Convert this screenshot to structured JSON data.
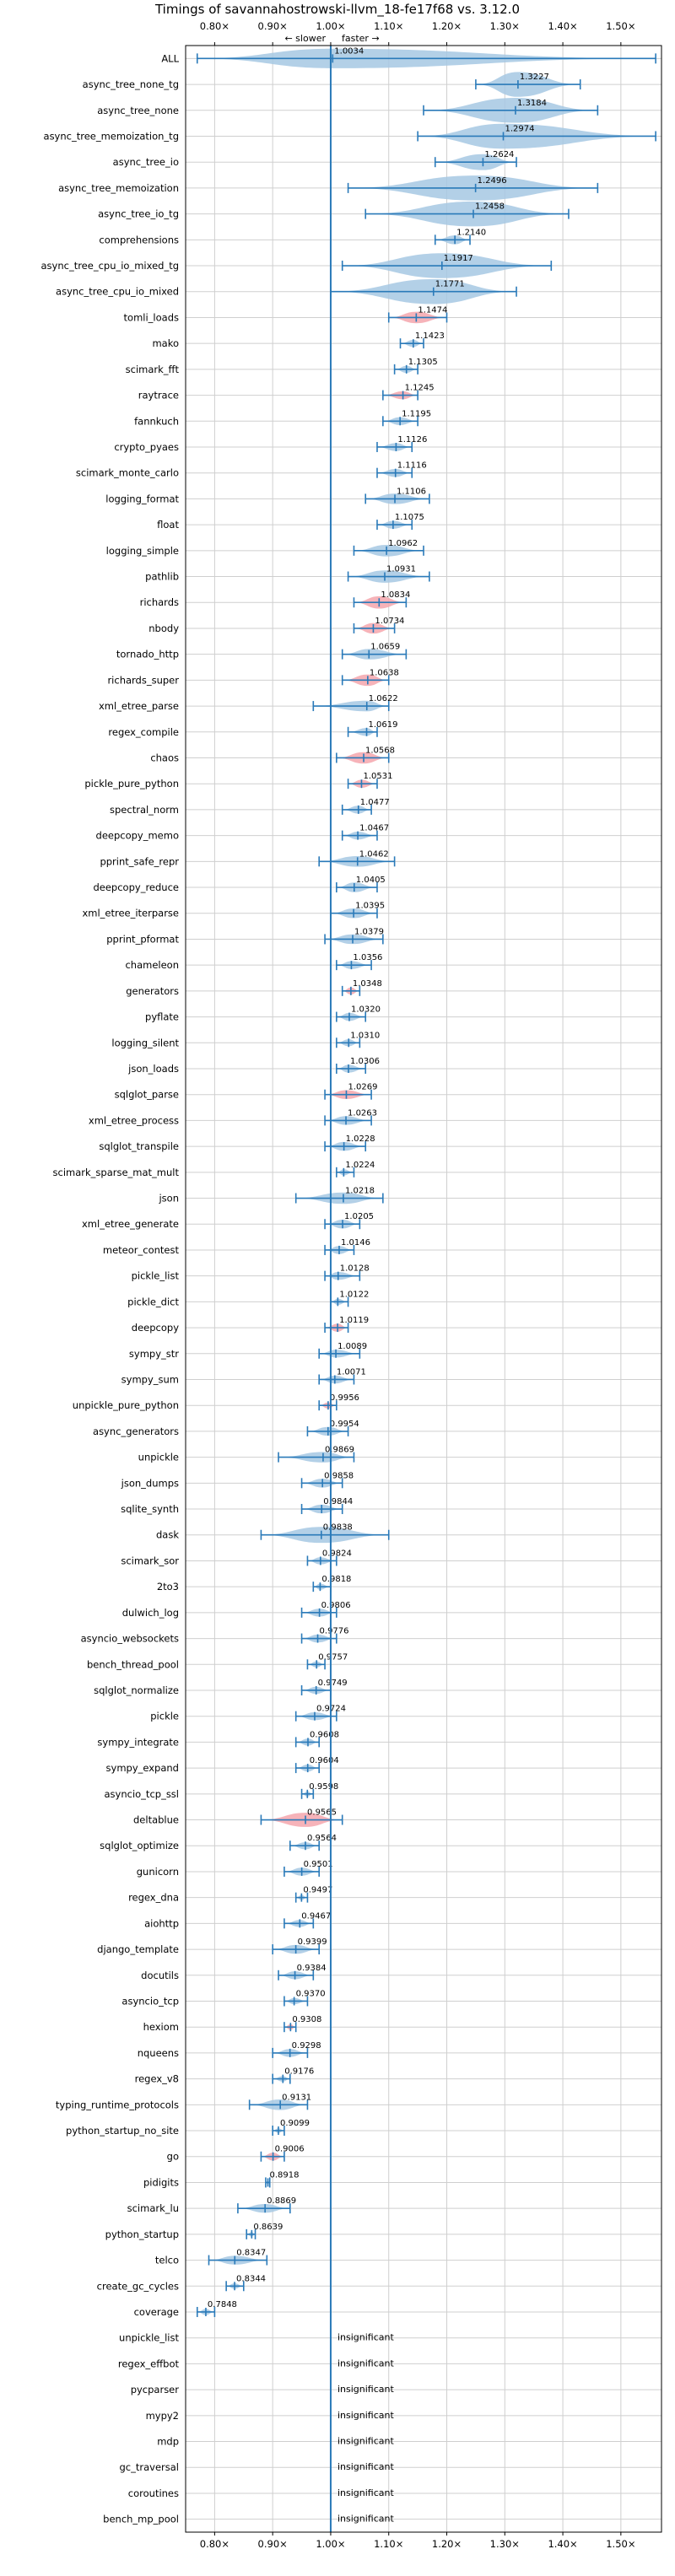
{
  "chart_data": {
    "type": "violin",
    "title": "Timings of savannahostrowski-llvm_18-fe17f68 vs. 3.12.0",
    "direction_labels": {
      "slower": "← slower",
      "faster": "faster →"
    },
    "xlim": [
      0.75,
      1.57
    ],
    "x_ticks": [
      0.8,
      0.9,
      1.0,
      1.1,
      1.2,
      1.3,
      1.4,
      1.5
    ],
    "x_tick_labels": [
      "0.80×",
      "0.90×",
      "1.00×",
      "1.10×",
      "1.20×",
      "1.30×",
      "1.40×",
      "1.50×"
    ],
    "grid": true,
    "reference_line": 1.0,
    "insignificant_label": "insignificant",
    "colors": {
      "normal": "#a6c8e3",
      "highlight": "#f4a6ad",
      "line": "#2a7ab9",
      "grid": "#cfcfcf"
    },
    "benchmarks": [
      {
        "name": "ALL",
        "value": 1.0034,
        "label": "1.0034",
        "min": 0.77,
        "max": 1.56,
        "width": 0.09,
        "highlight": false
      },
      {
        "name": "async_tree_none_tg",
        "value": 1.3227,
        "label": "1.3227",
        "min": 1.25,
        "max": 1.43,
        "width": 0.13,
        "highlight": false
      },
      {
        "name": "async_tree_none",
        "value": 1.3184,
        "label": "1.3184",
        "min": 1.16,
        "max": 1.46,
        "width": 0.15,
        "highlight": false
      },
      {
        "name": "async_tree_memoization_tg",
        "value": 1.2974,
        "label": "1.2974",
        "min": 1.15,
        "max": 1.56,
        "width": 0.21,
        "highlight": false
      },
      {
        "name": "async_tree_io",
        "value": 1.2624,
        "label": "1.2624",
        "min": 1.18,
        "max": 1.32,
        "width": 0.07,
        "highlight": false
      },
      {
        "name": "async_tree_memoization",
        "value": 1.2496,
        "label": "1.2496",
        "min": 1.03,
        "max": 1.46,
        "width": 0.21,
        "highlight": false
      },
      {
        "name": "async_tree_io_tg",
        "value": 1.2458,
        "label": "1.2458",
        "min": 1.06,
        "max": 1.41,
        "width": 0.18,
        "highlight": false
      },
      {
        "name": "comprehensions",
        "value": 1.214,
        "label": "1.2140",
        "min": 1.18,
        "max": 1.24,
        "width": 0.03,
        "highlight": false
      },
      {
        "name": "async_tree_cpu_io_mixed_tg",
        "value": 1.1917,
        "label": "1.1917",
        "min": 1.02,
        "max": 1.38,
        "width": 0.18,
        "highlight": false
      },
      {
        "name": "async_tree_cpu_io_mixed",
        "value": 1.1771,
        "label": "1.1771",
        "min": 1.0,
        "max": 1.32,
        "width": 0.16,
        "highlight": false
      },
      {
        "name": "tomli_loads",
        "value": 1.1474,
        "label": "1.1474",
        "min": 1.1,
        "max": 1.2,
        "width": 0.045,
        "highlight": true
      },
      {
        "name": "mako",
        "value": 1.1423,
        "label": "1.1423",
        "min": 1.12,
        "max": 1.16,
        "width": 0.02,
        "highlight": false
      },
      {
        "name": "scimark_fft",
        "value": 1.1305,
        "label": "1.1305",
        "min": 1.11,
        "max": 1.15,
        "width": 0.02,
        "highlight": false
      },
      {
        "name": "raytrace",
        "value": 1.1245,
        "label": "1.1245",
        "min": 1.09,
        "max": 1.15,
        "width": 0.025,
        "highlight": true
      },
      {
        "name": "fannkuch",
        "value": 1.1195,
        "label": "1.1195",
        "min": 1.09,
        "max": 1.15,
        "width": 0.025,
        "highlight": false
      },
      {
        "name": "crypto_pyaes",
        "value": 1.1126,
        "label": "1.1126",
        "min": 1.08,
        "max": 1.14,
        "width": 0.025,
        "highlight": false
      },
      {
        "name": "scimark_monte_carlo",
        "value": 1.1116,
        "label": "1.1116",
        "min": 1.08,
        "max": 1.14,
        "width": 0.025,
        "highlight": false
      },
      {
        "name": "logging_format",
        "value": 1.1106,
        "label": "1.1106",
        "min": 1.06,
        "max": 1.17,
        "width": 0.04,
        "highlight": false
      },
      {
        "name": "float",
        "value": 1.1075,
        "label": "1.1075",
        "min": 1.08,
        "max": 1.14,
        "width": 0.025,
        "highlight": false
      },
      {
        "name": "logging_simple",
        "value": 1.0962,
        "label": "1.0962",
        "min": 1.04,
        "max": 1.16,
        "width": 0.045,
        "highlight": false
      },
      {
        "name": "pathlib",
        "value": 1.0931,
        "label": "1.0931",
        "min": 1.03,
        "max": 1.17,
        "width": 0.05,
        "highlight": false
      },
      {
        "name": "richards",
        "value": 1.0834,
        "label": "1.0834",
        "min": 1.04,
        "max": 1.13,
        "width": 0.05,
        "highlight": true
      },
      {
        "name": "nbody",
        "value": 1.0734,
        "label": "1.0734",
        "min": 1.04,
        "max": 1.11,
        "width": 0.04,
        "highlight": true
      },
      {
        "name": "tornado_http",
        "value": 1.0659,
        "label": "1.0659",
        "min": 1.02,
        "max": 1.13,
        "width": 0.04,
        "highlight": false
      },
      {
        "name": "richards_super",
        "value": 1.0638,
        "label": "1.0638",
        "min": 1.02,
        "max": 1.1,
        "width": 0.045,
        "highlight": true
      },
      {
        "name": "xml_etree_parse",
        "value": 1.0622,
        "label": "1.0622",
        "min": 0.97,
        "max": 1.1,
        "width": 0.04,
        "highlight": false
      },
      {
        "name": "regex_compile",
        "value": 1.0619,
        "label": "1.0619",
        "min": 1.03,
        "max": 1.08,
        "width": 0.025,
        "highlight": false
      },
      {
        "name": "chaos",
        "value": 1.0568,
        "label": "1.0568",
        "min": 1.01,
        "max": 1.1,
        "width": 0.045,
        "highlight": true
      },
      {
        "name": "pickle_pure_python",
        "value": 1.0531,
        "label": "1.0531",
        "min": 1.03,
        "max": 1.08,
        "width": 0.025,
        "highlight": true
      },
      {
        "name": "spectral_norm",
        "value": 1.0477,
        "label": "1.0477",
        "min": 1.02,
        "max": 1.07,
        "width": 0.025,
        "highlight": false
      },
      {
        "name": "deepcopy_memo",
        "value": 1.0467,
        "label": "1.0467",
        "min": 1.02,
        "max": 1.08,
        "width": 0.025,
        "highlight": false
      },
      {
        "name": "pprint_safe_repr",
        "value": 1.0462,
        "label": "1.0462",
        "min": 0.98,
        "max": 1.11,
        "width": 0.04,
        "highlight": false
      },
      {
        "name": "deepcopy_reduce",
        "value": 1.0405,
        "label": "1.0405",
        "min": 1.01,
        "max": 1.08,
        "width": 0.035,
        "highlight": false
      },
      {
        "name": "xml_etree_iterparse",
        "value": 1.0395,
        "label": "1.0395",
        "min": 1.0,
        "max": 1.08,
        "width": 0.035,
        "highlight": false
      },
      {
        "name": "pprint_pformat",
        "value": 1.0379,
        "label": "1.0379",
        "min": 0.99,
        "max": 1.09,
        "width": 0.035,
        "highlight": false
      },
      {
        "name": "chameleon",
        "value": 1.0356,
        "label": "1.0356",
        "min": 1.01,
        "max": 1.07,
        "width": 0.025,
        "highlight": false
      },
      {
        "name": "generators",
        "value": 1.0348,
        "label": "1.0348",
        "min": 1.02,
        "max": 1.05,
        "width": 0.02,
        "highlight": true
      },
      {
        "name": "pyflate",
        "value": 1.032,
        "label": "1.0320",
        "min": 1.01,
        "max": 1.06,
        "width": 0.025,
        "highlight": false
      },
      {
        "name": "logging_silent",
        "value": 1.031,
        "label": "1.0310",
        "min": 1.01,
        "max": 1.05,
        "width": 0.02,
        "highlight": false
      },
      {
        "name": "json_loads",
        "value": 1.0306,
        "label": "1.0306",
        "min": 1.01,
        "max": 1.06,
        "width": 0.025,
        "highlight": false
      },
      {
        "name": "sqlglot_parse",
        "value": 1.0269,
        "label": "1.0269",
        "min": 0.99,
        "max": 1.07,
        "width": 0.03,
        "highlight": true
      },
      {
        "name": "xml_etree_process",
        "value": 1.0263,
        "label": "1.0263",
        "min": 0.99,
        "max": 1.07,
        "width": 0.03,
        "highlight": false
      },
      {
        "name": "sqlglot_transpile",
        "value": 1.0228,
        "label": "1.0228",
        "min": 0.99,
        "max": 1.06,
        "width": 0.03,
        "highlight": false
      },
      {
        "name": "scimark_sparse_mat_mult",
        "value": 1.0224,
        "label": "1.0224",
        "min": 1.01,
        "max": 1.04,
        "width": 0.015,
        "highlight": false
      },
      {
        "name": "json",
        "value": 1.0218,
        "label": "1.0218",
        "min": 0.94,
        "max": 1.09,
        "width": 0.045,
        "highlight": false
      },
      {
        "name": "xml_etree_generate",
        "value": 1.0205,
        "label": "1.0205",
        "min": 0.99,
        "max": 1.05,
        "width": 0.03,
        "highlight": false
      },
      {
        "name": "meteor_contest",
        "value": 1.0146,
        "label": "1.0146",
        "min": 0.99,
        "max": 1.04,
        "width": 0.025,
        "highlight": false
      },
      {
        "name": "pickle_list",
        "value": 1.0128,
        "label": "1.0128",
        "min": 0.99,
        "max": 1.05,
        "width": 0.025,
        "highlight": false
      },
      {
        "name": "pickle_dict",
        "value": 1.0122,
        "label": "1.0122",
        "min": 1.0,
        "max": 1.03,
        "width": 0.015,
        "highlight": false
      },
      {
        "name": "deepcopy",
        "value": 1.0119,
        "label": "1.0119",
        "min": 0.99,
        "max": 1.03,
        "width": 0.025,
        "highlight": true
      },
      {
        "name": "sympy_str",
        "value": 1.0089,
        "label": "1.0089",
        "min": 0.98,
        "max": 1.05,
        "width": 0.025,
        "highlight": false
      },
      {
        "name": "sympy_sum",
        "value": 1.0071,
        "label": "1.0071",
        "min": 0.98,
        "max": 1.04,
        "width": 0.025,
        "highlight": false
      },
      {
        "name": "unpickle_pure_python",
        "value": 0.9956,
        "label": "0.9956",
        "min": 0.98,
        "max": 1.01,
        "width": 0.015,
        "highlight": true
      },
      {
        "name": "async_generators",
        "value": 0.9954,
        "label": "0.9954",
        "min": 0.96,
        "max": 1.03,
        "width": 0.03,
        "highlight": false
      },
      {
        "name": "unpickle",
        "value": 0.9869,
        "label": "0.9869",
        "min": 0.91,
        "max": 1.04,
        "width": 0.04,
        "highlight": false
      },
      {
        "name": "json_dumps",
        "value": 0.9858,
        "label": "0.9858",
        "min": 0.95,
        "max": 1.02,
        "width": 0.03,
        "highlight": false
      },
      {
        "name": "sqlite_synth",
        "value": 0.9844,
        "label": "0.9844",
        "min": 0.95,
        "max": 1.02,
        "width": 0.03,
        "highlight": false
      },
      {
        "name": "dask",
        "value": 0.9838,
        "label": "0.9838",
        "min": 0.88,
        "max": 1.1,
        "width": 0.07,
        "highlight": false
      },
      {
        "name": "scimark_sor",
        "value": 0.9824,
        "label": "0.9824",
        "min": 0.96,
        "max": 1.01,
        "width": 0.02,
        "highlight": false
      },
      {
        "name": "2to3",
        "value": 0.9818,
        "label": "0.9818",
        "min": 0.97,
        "max": 1.0,
        "width": 0.015,
        "highlight": false
      },
      {
        "name": "dulwich_log",
        "value": 0.9806,
        "label": "0.9806",
        "min": 0.95,
        "max": 1.01,
        "width": 0.025,
        "highlight": false
      },
      {
        "name": "asyncio_websockets",
        "value": 0.9776,
        "label": "0.9776",
        "min": 0.95,
        "max": 1.01,
        "width": 0.025,
        "highlight": false
      },
      {
        "name": "bench_thread_pool",
        "value": 0.9757,
        "label": "0.9757",
        "min": 0.96,
        "max": 0.99,
        "width": 0.015,
        "highlight": false
      },
      {
        "name": "sqlglot_normalize",
        "value": 0.9749,
        "label": "0.9749",
        "min": 0.95,
        "max": 1.0,
        "width": 0.02,
        "highlight": false
      },
      {
        "name": "pickle",
        "value": 0.9724,
        "label": "0.9724",
        "min": 0.94,
        "max": 1.01,
        "width": 0.025,
        "highlight": false
      },
      {
        "name": "sympy_integrate",
        "value": 0.9608,
        "label": "0.9608",
        "min": 0.94,
        "max": 0.98,
        "width": 0.02,
        "highlight": false
      },
      {
        "name": "sympy_expand",
        "value": 0.9604,
        "label": "0.9604",
        "min": 0.94,
        "max": 0.98,
        "width": 0.02,
        "highlight": false
      },
      {
        "name": "asyncio_tcp_ssl",
        "value": 0.9598,
        "label": "0.9598",
        "min": 0.95,
        "max": 0.97,
        "width": 0.01,
        "highlight": false
      },
      {
        "name": "deltablue",
        "value": 0.9565,
        "label": "0.9565",
        "min": 0.88,
        "max": 1.02,
        "width": 0.06,
        "highlight": true
      },
      {
        "name": "sqlglot_optimize",
        "value": 0.9564,
        "label": "0.9564",
        "min": 0.93,
        "max": 0.98,
        "width": 0.02,
        "highlight": false
      },
      {
        "name": "gunicorn",
        "value": 0.9501,
        "label": "0.9501",
        "min": 0.92,
        "max": 0.98,
        "width": 0.025,
        "highlight": false
      },
      {
        "name": "regex_dna",
        "value": 0.9497,
        "label": "0.9497",
        "min": 0.94,
        "max": 0.96,
        "width": 0.01,
        "highlight": false
      },
      {
        "name": "aiohttp",
        "value": 0.9467,
        "label": "0.9467",
        "min": 0.92,
        "max": 0.97,
        "width": 0.02,
        "highlight": false
      },
      {
        "name": "django_template",
        "value": 0.9399,
        "label": "0.9399",
        "min": 0.9,
        "max": 0.98,
        "width": 0.03,
        "highlight": false
      },
      {
        "name": "docutils",
        "value": 0.9384,
        "label": "0.9384",
        "min": 0.91,
        "max": 0.97,
        "width": 0.025,
        "highlight": false
      },
      {
        "name": "asyncio_tcp",
        "value": 0.937,
        "label": "0.9370",
        "min": 0.92,
        "max": 0.96,
        "width": 0.015,
        "highlight": false
      },
      {
        "name": "hexiom",
        "value": 0.9308,
        "label": "0.9308",
        "min": 0.92,
        "max": 0.94,
        "width": 0.012,
        "highlight": true
      },
      {
        "name": "nqueens",
        "value": 0.9298,
        "label": "0.9298",
        "min": 0.9,
        "max": 0.96,
        "width": 0.025,
        "highlight": false
      },
      {
        "name": "regex_v8",
        "value": 0.9176,
        "label": "0.9176",
        "min": 0.9,
        "max": 0.93,
        "width": 0.012,
        "highlight": false
      },
      {
        "name": "typing_runtime_protocols",
        "value": 0.9131,
        "label": "0.9131",
        "min": 0.86,
        "max": 0.96,
        "width": 0.04,
        "highlight": false
      },
      {
        "name": "python_startup_no_site",
        "value": 0.9099,
        "label": "0.9099",
        "min": 0.9,
        "max": 0.92,
        "width": 0.008,
        "highlight": false
      },
      {
        "name": "go",
        "value": 0.9006,
        "label": "0.9006",
        "min": 0.88,
        "max": 0.92,
        "width": 0.025,
        "highlight": true
      },
      {
        "name": "pidigits",
        "value": 0.8918,
        "label": "0.8918",
        "min": 0.888,
        "max": 0.895,
        "width": 0.004,
        "highlight": false
      },
      {
        "name": "scimark_lu",
        "value": 0.8869,
        "label": "0.8869",
        "min": 0.84,
        "max": 0.93,
        "width": 0.03,
        "highlight": false
      },
      {
        "name": "python_startup",
        "value": 0.8639,
        "label": "0.8639",
        "min": 0.855,
        "max": 0.87,
        "width": 0.008,
        "highlight": false
      },
      {
        "name": "telco",
        "value": 0.8347,
        "label": "0.8347",
        "min": 0.79,
        "max": 0.89,
        "width": 0.03,
        "highlight": false
      },
      {
        "name": "create_gc_cycles",
        "value": 0.8344,
        "label": "0.8344",
        "min": 0.82,
        "max": 0.85,
        "width": 0.012,
        "highlight": false
      },
      {
        "name": "coverage",
        "value": 0.7848,
        "label": "0.7848",
        "min": 0.77,
        "max": 0.8,
        "width": 0.015,
        "highlight": false
      },
      {
        "name": "unpickle_list",
        "insignificant": true
      },
      {
        "name": "regex_effbot",
        "insignificant": true
      },
      {
        "name": "pycparser",
        "insignificant": true
      },
      {
        "name": "mypy2",
        "insignificant": true
      },
      {
        "name": "mdp",
        "insignificant": true
      },
      {
        "name": "gc_traversal",
        "insignificant": true
      },
      {
        "name": "coroutines",
        "insignificant": true
      },
      {
        "name": "bench_mp_pool",
        "insignificant": true
      }
    ]
  }
}
